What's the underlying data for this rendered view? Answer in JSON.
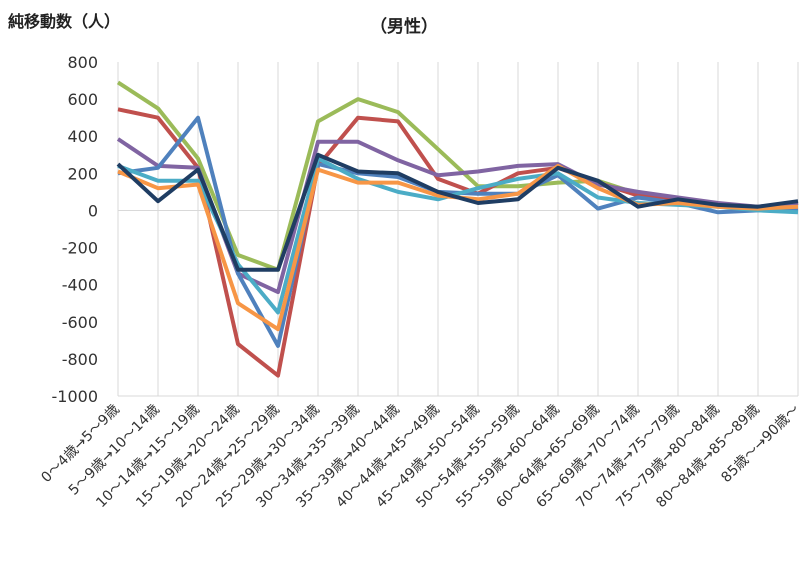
{
  "chart_data": {
    "type": "line",
    "title": "（男性）",
    "ylabel": "純移動数（人）",
    "xlabel": "",
    "ylim": [
      -1000,
      800
    ],
    "yticks": [
      800,
      600,
      400,
      200,
      0,
      -200,
      -400,
      -600,
      -800,
      -1000
    ],
    "grid": "vertical",
    "legend": "none",
    "categories": [
      "0～4歳→5～9歳",
      "5～9歳→10～14歳",
      "10～14歳→15～19歳",
      "15～19歳→20～24歳",
      "20～24歳→25～29歳",
      "25～29歳→30～34歳",
      "30～34歳→35～39歳",
      "35～39歳→40～44歳",
      "40～44歳→45～49歳",
      "45～49歳→50～54歳",
      "50～54歳→55～59歳",
      "55～59歳→60～64歳",
      "60～64歳→65～69歳",
      "65～69歳→70～74歳",
      "70～74歳→75～79歳",
      "75～79歳→80～84歳",
      "80～84歳→85～89歳",
      "85歳～→90歳～"
    ],
    "series": [
      {
        "color": "#9bbb59",
        "values": [
          690,
          550,
          280,
          -240,
          -320,
          480,
          600,
          530,
          330,
          130,
          130,
          150,
          160,
          90,
          60,
          30,
          5,
          10
        ]
      },
      {
        "color": "#c0504d",
        "values": [
          545,
          500,
          230,
          -720,
          -890,
          240,
          500,
          480,
          170,
          90,
          200,
          230,
          150,
          80,
          60,
          30,
          20,
          40
        ]
      },
      {
        "color": "#8064a2",
        "values": [
          385,
          240,
          230,
          -340,
          -440,
          370,
          370,
          270,
          190,
          210,
          240,
          250,
          140,
          100,
          70,
          40,
          20,
          40
        ]
      },
      {
        "color": "#4f81bd",
        "values": [
          200,
          230,
          500,
          -340,
          -730,
          250,
          200,
          180,
          100,
          90,
          90,
          190,
          10,
          70,
          40,
          -10,
          0,
          0
        ]
      },
      {
        "color": "#4bacc6",
        "values": [
          240,
          160,
          160,
          -290,
          -550,
          280,
          170,
          100,
          60,
          120,
          170,
          200,
          70,
          40,
          30,
          20,
          0,
          -10
        ]
      },
      {
        "color": "#f79646",
        "values": [
          210,
          120,
          140,
          -500,
          -640,
          220,
          150,
          150,
          80,
          60,
          90,
          240,
          120,
          30,
          40,
          20,
          10,
          20
        ]
      },
      {
        "color": "#1f3d63",
        "values": [
          250,
          50,
          220,
          -320,
          -320,
          300,
          210,
          200,
          100,
          40,
          60,
          230,
          160,
          20,
          60,
          30,
          20,
          50
        ]
      }
    ]
  }
}
